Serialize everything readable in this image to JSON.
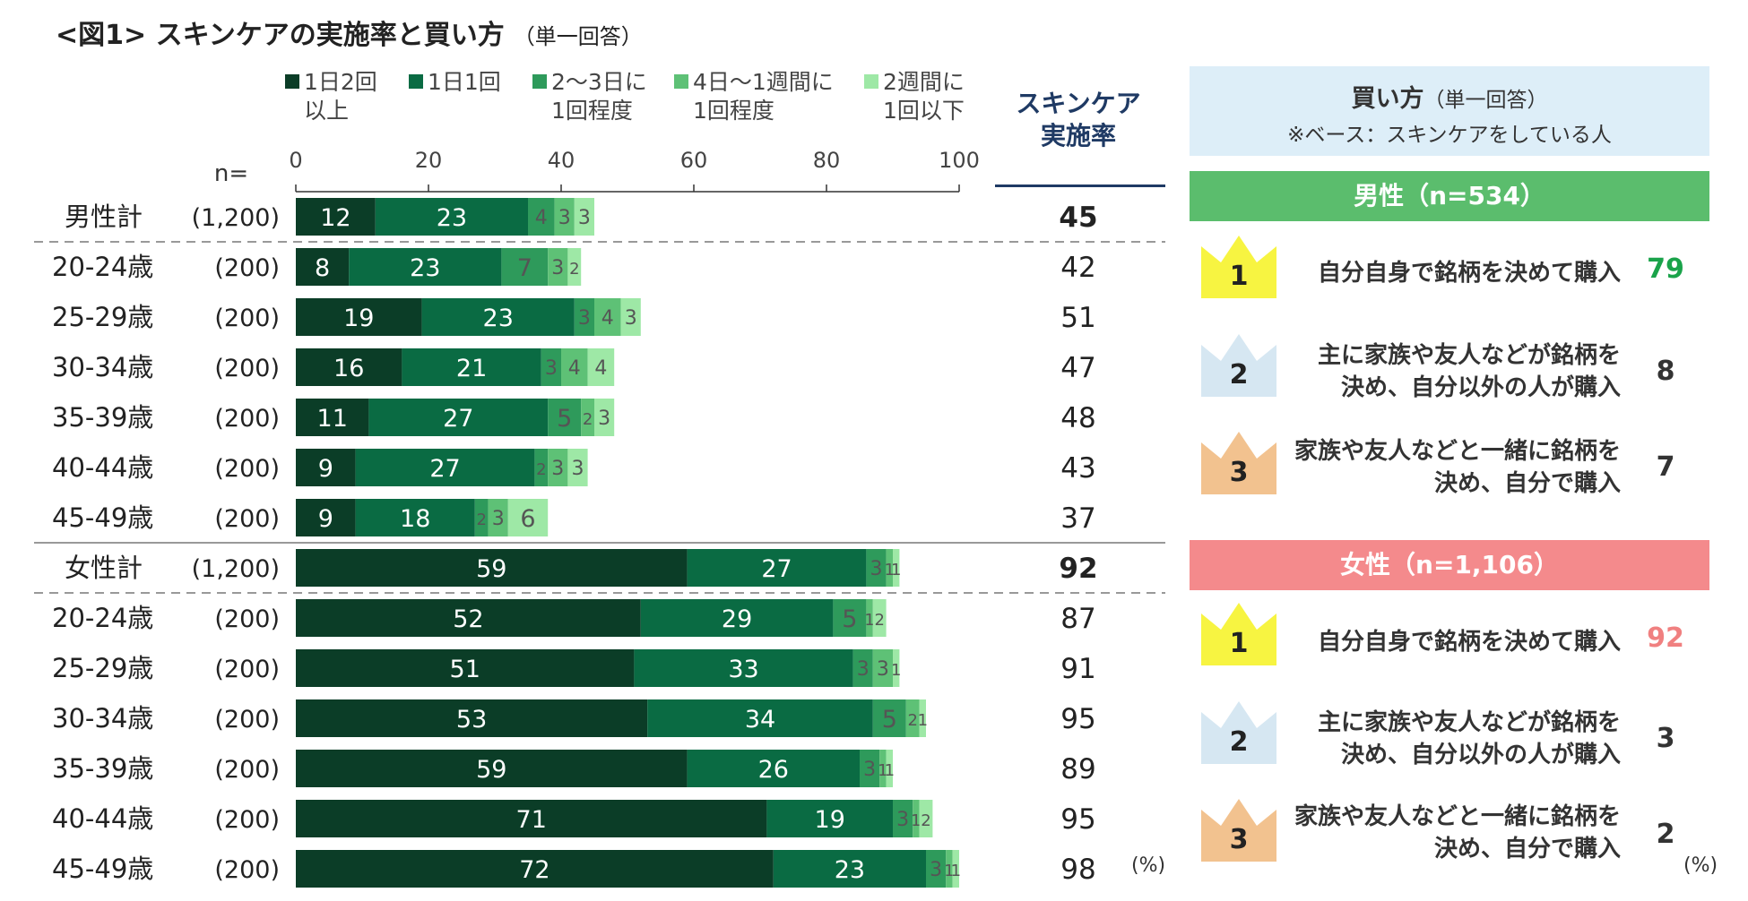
{
  "title": {
    "main": "<図1> スキンケアの実施率と買い方",
    "note": "（単一回答）"
  },
  "colors": {
    "series": [
      "#0b3d27",
      "#0a6b43",
      "#2e9a5b",
      "#5ec176",
      "#9ee8a6"
    ],
    "value_label_dark": "#ffffff",
    "value_label_light": "#555555",
    "male_accent": "#1aa34a",
    "female_accent": "#f08080",
    "crown_gold": "#f7f441",
    "crown_silver": "#d6e7f2",
    "crown_bronze": "#f2c28f"
  },
  "labels": {
    "n_label": "n=",
    "rate_header_line1": "スキンケア",
    "rate_header_line2": "実施率",
    "pct_unit": "(%)"
  },
  "chart_data": {
    "type": "bar",
    "orientation": "horizontal",
    "stacked": true,
    "xlim": [
      0,
      100
    ],
    "xticks": [
      0,
      20,
      40,
      60,
      80,
      100
    ],
    "series_names": [
      "1日2回以上",
      "1日1回",
      "2〜3日に1回程度",
      "4日〜1週間に1回程度",
      "2週間に1回以下"
    ],
    "legend": [
      {
        "line1": "1日2回",
        "line2": "以上"
      },
      {
        "line1": "1日1回",
        "line2": ""
      },
      {
        "line1": "2〜3日に",
        "line2": "1回程度"
      },
      {
        "line1": "4日〜1週間に",
        "line2": "1回程度"
      },
      {
        "line1": "2週間に",
        "line2": "1回以下"
      }
    ],
    "rows": [
      {
        "label": "男性計",
        "n": "(1,200)",
        "values": [
          12,
          23,
          4,
          3,
          3
        ],
        "rate": 45,
        "total": true
      },
      {
        "label": "20-24歳",
        "n": "(200)",
        "values": [
          8,
          23,
          7,
          3,
          2
        ],
        "rate": 42
      },
      {
        "label": "25-29歳",
        "n": "(200)",
        "values": [
          19,
          23,
          3,
          4,
          3
        ],
        "rate": 51
      },
      {
        "label": "30-34歳",
        "n": "(200)",
        "values": [
          16,
          21,
          3,
          4,
          4
        ],
        "rate": 47
      },
      {
        "label": "35-39歳",
        "n": "(200)",
        "values": [
          11,
          27,
          5,
          2,
          3
        ],
        "rate": 48
      },
      {
        "label": "40-44歳",
        "n": "(200)",
        "values": [
          9,
          27,
          2,
          3,
          3
        ],
        "rate": 43
      },
      {
        "label": "45-49歳",
        "n": "(200)",
        "values": [
          9,
          18,
          2,
          3,
          6
        ],
        "rate": 37
      },
      {
        "label": "女性計",
        "n": "(1,200)",
        "values": [
          59,
          27,
          3,
          1,
          1
        ],
        "rate": 92,
        "total": true
      },
      {
        "label": "20-24歳",
        "n": "(200)",
        "values": [
          52,
          29,
          5,
          1,
          2
        ],
        "rate": 87
      },
      {
        "label": "25-29歳",
        "n": "(200)",
        "values": [
          51,
          33,
          3,
          3,
          1
        ],
        "rate": 91
      },
      {
        "label": "30-34歳",
        "n": "(200)",
        "values": [
          53,
          34,
          5,
          2,
          1
        ],
        "rate": 95
      },
      {
        "label": "35-39歳",
        "n": "(200)",
        "values": [
          59,
          26,
          3,
          1,
          1
        ],
        "rate": 89
      },
      {
        "label": "40-44歳",
        "n": "(200)",
        "values": [
          71,
          19,
          3,
          1,
          2
        ],
        "rate": 95
      },
      {
        "label": "45-49歳",
        "n": "(200)",
        "values": [
          72,
          23,
          3,
          1,
          1
        ],
        "rate": 98
      }
    ]
  },
  "buy_panel": {
    "title": "買い方",
    "title_note": "（単一回答）",
    "base_note": "※ベース：スキンケアをしている人",
    "male": {
      "header": "男性（n=534）",
      "items": [
        {
          "rank": "1",
          "text": "自分自身で銘柄を決めて購入",
          "value": "79"
        },
        {
          "rank": "2",
          "text": "主に家族や友人などが銘柄を\n決め、自分以外の人が購入",
          "value": "8"
        },
        {
          "rank": "3",
          "text": "家族や友人などと一緒に銘柄を\n決め、自分で購入",
          "value": "7"
        }
      ]
    },
    "female": {
      "header": "女性（n=1,106）",
      "items": [
        {
          "rank": "1",
          "text": "自分自身で銘柄を決めて購入",
          "value": "92"
        },
        {
          "rank": "2",
          "text": "主に家族や友人などが銘柄を\n決め、自分以外の人が購入",
          "value": "3"
        },
        {
          "rank": "3",
          "text": "家族や友人などと一緒に銘柄を\n決め、自分で購入",
          "value": "2"
        }
      ]
    }
  }
}
